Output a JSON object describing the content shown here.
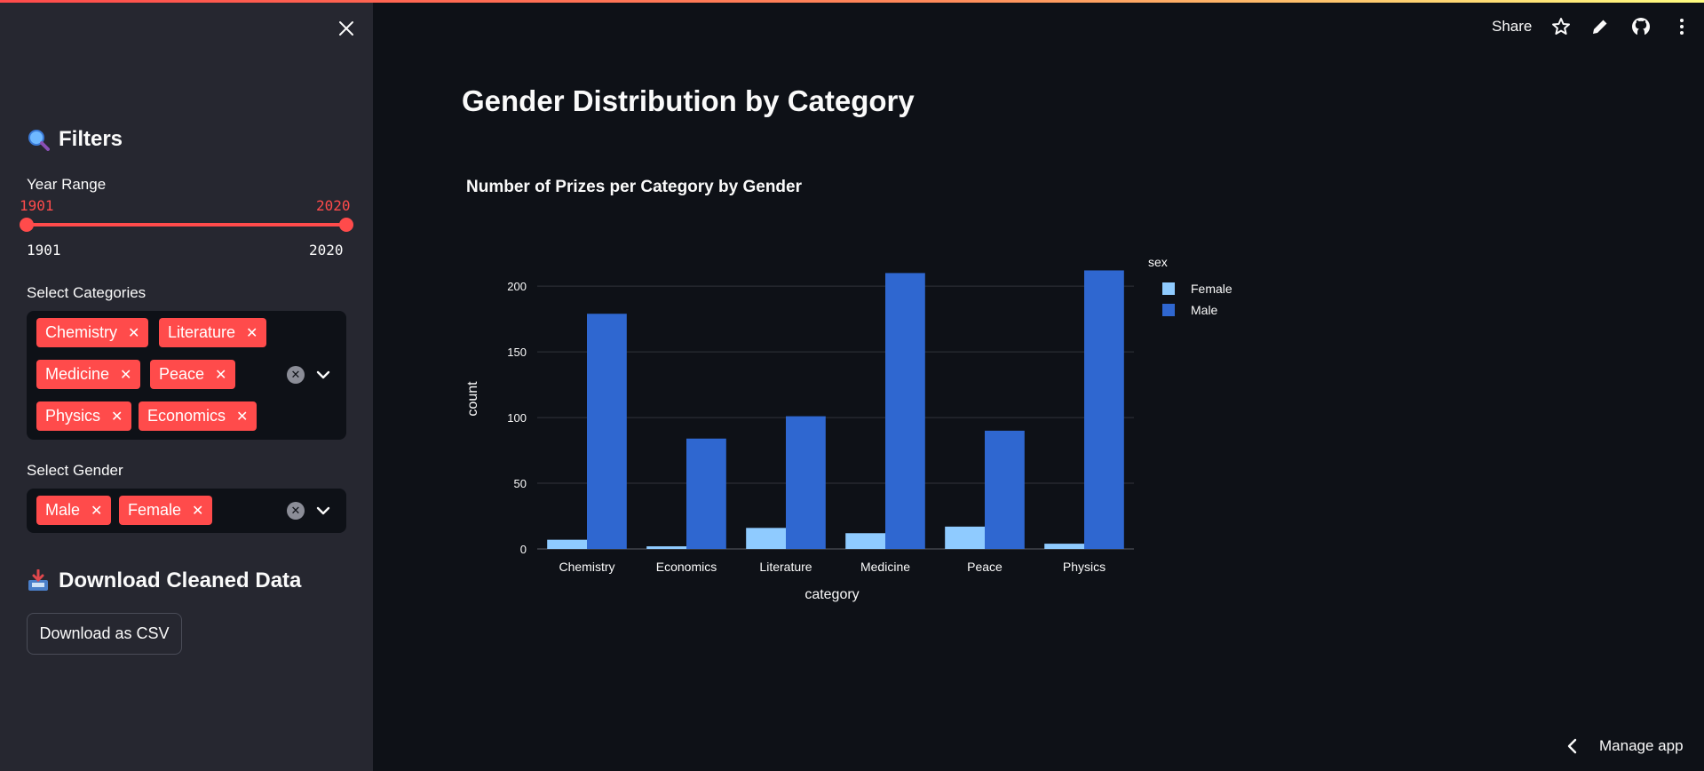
{
  "sidebar": {
    "filters_header": "Filters",
    "filters_icon": "magnifier-icon",
    "year_range": {
      "label": "Year Range",
      "value_min": "1901",
      "value_max": "2020",
      "tick_min": "1901",
      "tick_max": "2020"
    },
    "categories": {
      "label": "Select Categories",
      "selected": [
        "Chemistry",
        "Literature",
        "Medicine",
        "Peace",
        "Physics",
        "Economics"
      ]
    },
    "gender": {
      "label": "Select Gender",
      "selected": [
        "Male",
        "Female"
      ]
    },
    "download_header": "Download Cleaned Data",
    "download_icon": "inbox-tray-icon",
    "download_button": "Download as CSV"
  },
  "toolbar": {
    "share_label": "Share",
    "icons": [
      "star-icon",
      "pencil-icon",
      "github-icon",
      "more-vert-icon"
    ]
  },
  "main": {
    "page_title": "Gender Distribution by Category"
  },
  "footer": {
    "manage_app": "Manage app"
  },
  "colors": {
    "accent": "#ff4b4b",
    "female": "#8fcbff",
    "male": "#2f67d0",
    "background": "#0e1117",
    "sidebar": "#262730"
  },
  "chart_data": {
    "type": "bar",
    "title": "Number of Prizes per Category by Gender",
    "xlabel": "category",
    "ylabel": "count",
    "categories": [
      "Chemistry",
      "Economics",
      "Literature",
      "Medicine",
      "Peace",
      "Physics"
    ],
    "series": [
      {
        "name": "Female",
        "values": [
          7,
          2,
          16,
          12,
          17,
          4
        ]
      },
      {
        "name": "Male",
        "values": [
          179,
          84,
          101,
          210,
          90,
          212
        ]
      }
    ],
    "ylim": [
      0,
      215
    ],
    "yticks": [
      0,
      50,
      100,
      150,
      200
    ],
    "legend_title": "sex",
    "legend_position": "top-right",
    "grid": true
  }
}
